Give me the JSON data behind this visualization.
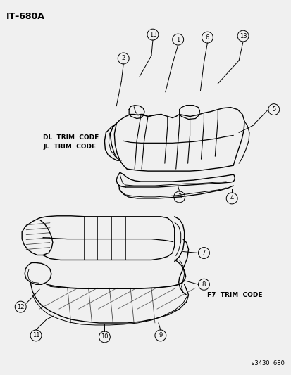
{
  "title": "IT–680A",
  "bg": "#f5f5f5",
  "footer": "s3430  680",
  "trim_top_1": "DL  TRIM  CODE",
  "trim_top_2": "JL  TRIM  CODE",
  "trim_bot": "F7  TRIM  CODE"
}
